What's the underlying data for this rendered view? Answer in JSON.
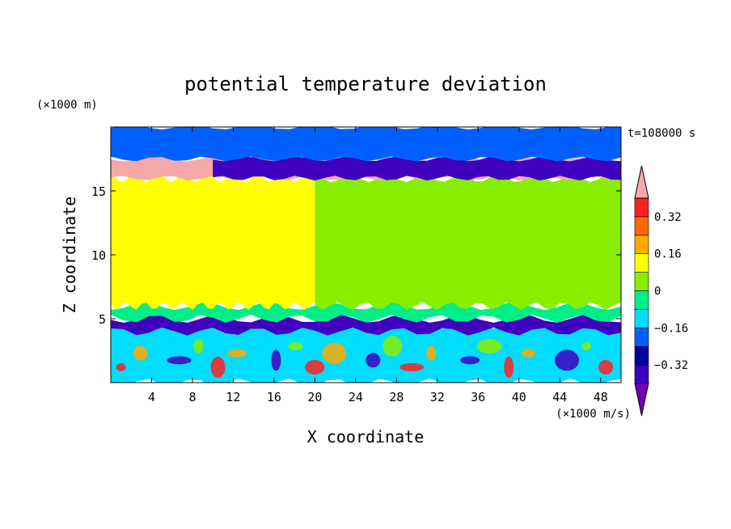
{
  "chart_data": {
    "type": "heatmap",
    "title": "potential temperature deviation",
    "xlabel": "X coordinate",
    "ylabel": "Z coordinate",
    "x_unit": "(×1000 m/s)",
    "y_unit": "(×1000 m)",
    "time_label": "t=108000 s",
    "xlim": [
      0,
      50
    ],
    "ylim": [
      0,
      20
    ],
    "x_ticks": [
      4,
      8,
      12,
      16,
      20,
      24,
      28,
      32,
      36,
      40,
      44,
      48
    ],
    "y_ticks": [
      5,
      10,
      15
    ],
    "colorbar": {
      "levels": [
        -0.48,
        -0.4,
        -0.32,
        -0.24,
        -0.16,
        -0.08,
        0,
        0.08,
        0.16,
        0.24,
        0.32,
        0.4
      ],
      "colors": [
        "#7000b0",
        "#4000c0",
        "#0000a0",
        "#0060ff",
        "#00ddff",
        "#00ee88",
        "#88ee00",
        "#ffff00",
        "#ffaa00",
        "#ff6600",
        "#ff2020",
        "#f5a8a8"
      ],
      "labels": [
        {
          "value": 0.32,
          "text": "0.32"
        },
        {
          "value": 0.16,
          "text": "0.16"
        },
        {
          "value": 0,
          "text": "0"
        },
        {
          "value": -0.16,
          "text": "−0.16"
        },
        {
          "value": -0.32,
          "text": "−0.32"
        }
      ]
    },
    "regions": [
      {
        "name": "lower-boundary-layer",
        "z": [
          0,
          4.5
        ],
        "level": -0.16
      },
      {
        "name": "cold-layer",
        "z": [
          4,
          5
        ],
        "level": -0.4
      },
      {
        "name": "transition-layer",
        "z": [
          5,
          6
        ],
        "level": -0.08
      },
      {
        "name": "mid-troposphere-west",
        "x": [
          0,
          20
        ],
        "z": [
          6,
          16
        ],
        "level": 0.08
      },
      {
        "name": "mid-troposphere-east",
        "x": [
          20,
          50
        ],
        "z": [
          6,
          16
        ],
        "level": 0
      },
      {
        "name": "warm-band-upper",
        "z": [
          16,
          17.5
        ],
        "level": 0.4
      },
      {
        "name": "cold-band-upper",
        "x": [
          10,
          50
        ],
        "z": [
          16,
          17.5
        ],
        "level": -0.4
      },
      {
        "name": "stratosphere-layer",
        "z": [
          17.5,
          20
        ],
        "level": -0.24
      }
    ]
  }
}
